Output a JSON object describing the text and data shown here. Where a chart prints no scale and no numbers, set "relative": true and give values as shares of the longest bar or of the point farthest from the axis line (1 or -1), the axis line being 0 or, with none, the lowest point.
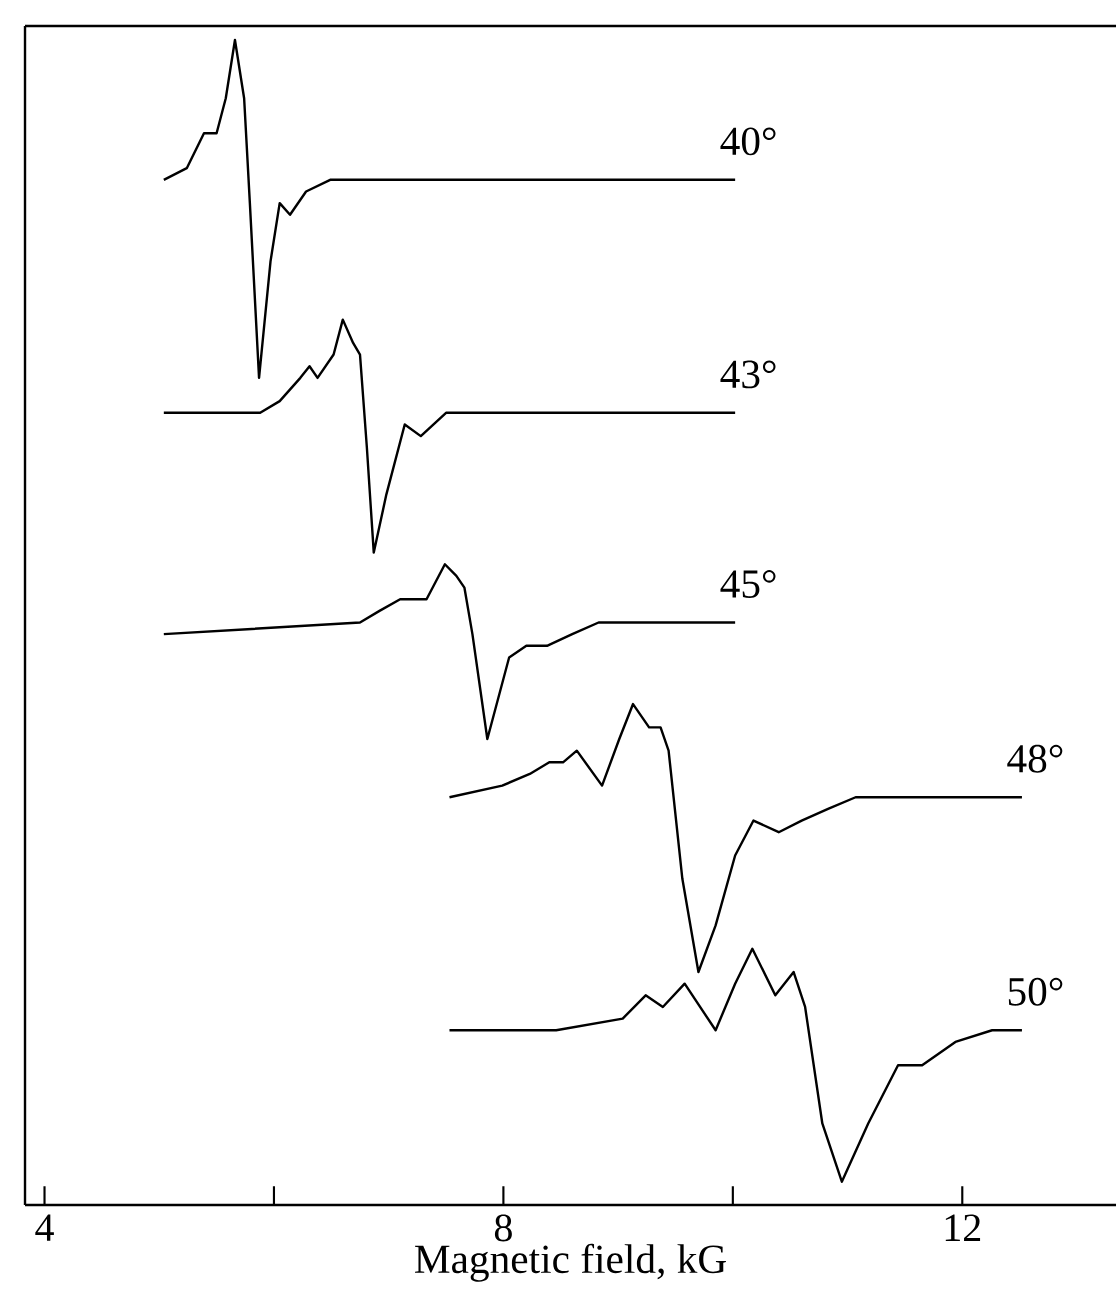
{
  "chart_data": {
    "type": "line",
    "relative": true,
    "xlabel": "Magnetic field, kG",
    "xlim": [
      3.83,
      13.34
    ],
    "xticks": [
      4,
      {
        "value": 6,
        "label": null
      },
      8,
      {
        "value": 10,
        "label": null
      },
      12
    ],
    "tick_labels": "x",
    "series": [
      {
        "name": "40°",
        "color": "#000000",
        "x": [
          5.04,
          5.24,
          5.39,
          5.43,
          5.5,
          5.58,
          5.66,
          5.74,
          5.79,
          5.87,
          5.97,
          6.05,
          6.14,
          6.28,
          6.49,
          6.81,
          7.73,
          10.02
        ],
        "values": [
          0.88,
          0.89,
          0.92,
          0.92,
          0.92,
          0.95,
          1.0,
          0.95,
          0.86,
          0.71,
          0.81,
          0.86,
          0.85,
          0.87,
          0.88,
          0.88,
          0.88,
          0.88
        ]
      },
      {
        "name": "43°",
        "color": "#000000",
        "x": [
          5.04,
          5.88,
          6.05,
          6.23,
          6.31,
          6.38,
          6.52,
          6.6,
          6.69,
          6.75,
          6.81,
          6.87,
          6.98,
          7.14,
          7.28,
          7.5,
          7.7,
          10.02
        ],
        "values": [
          0.68,
          0.68,
          0.69,
          0.71,
          0.72,
          0.71,
          0.73,
          0.76,
          0.74,
          0.73,
          0.65,
          0.56,
          0.61,
          0.67,
          0.66,
          0.68,
          0.68,
          0.68
        ]
      },
      {
        "name": "45°",
        "color": "#000000",
        "x": [
          5.04,
          6.75,
          6.92,
          7.1,
          7.21,
          7.33,
          7.49,
          7.59,
          7.66,
          7.73,
          7.86,
          8.05,
          8.2,
          8.38,
          8.6,
          8.83,
          10.02
        ],
        "values": [
          0.49,
          0.5,
          0.51,
          0.52,
          0.52,
          0.52,
          0.55,
          0.54,
          0.53,
          0.49,
          0.4,
          0.47,
          0.48,
          0.48,
          0.49,
          0.5,
          0.5
        ]
      },
      {
        "name": "48°",
        "color": "#000000",
        "x": [
          7.53,
          7.99,
          8.23,
          8.4,
          8.52,
          8.64,
          8.86,
          9.01,
          9.13,
          9.27,
          9.37,
          9.44,
          9.56,
          9.7,
          9.85,
          10.02,
          10.18,
          10.4,
          10.6,
          10.83,
          11.07,
          12.52
        ],
        "values": [
          0.35,
          0.36,
          0.37,
          0.38,
          0.38,
          0.39,
          0.36,
          0.4,
          0.43,
          0.41,
          0.41,
          0.39,
          0.28,
          0.2,
          0.24,
          0.3,
          0.33,
          0.32,
          0.33,
          0.34,
          0.35,
          0.35
        ]
      },
      {
        "name": "50°",
        "color": "#000000",
        "x": [
          7.53,
          8.46,
          9.04,
          9.24,
          9.39,
          9.58,
          9.85,
          10.02,
          10.17,
          10.37,
          10.53,
          10.63,
          10.78,
          10.95,
          11.18,
          11.44,
          11.65,
          11.94,
          12.26,
          12.52
        ],
        "values": [
          0.15,
          0.15,
          0.16,
          0.18,
          0.17,
          0.19,
          0.15,
          0.19,
          0.22,
          0.18,
          0.2,
          0.17,
          0.07,
          0.02,
          0.07,
          0.12,
          0.12,
          0.14,
          0.15,
          0.15
        ]
      }
    ]
  }
}
